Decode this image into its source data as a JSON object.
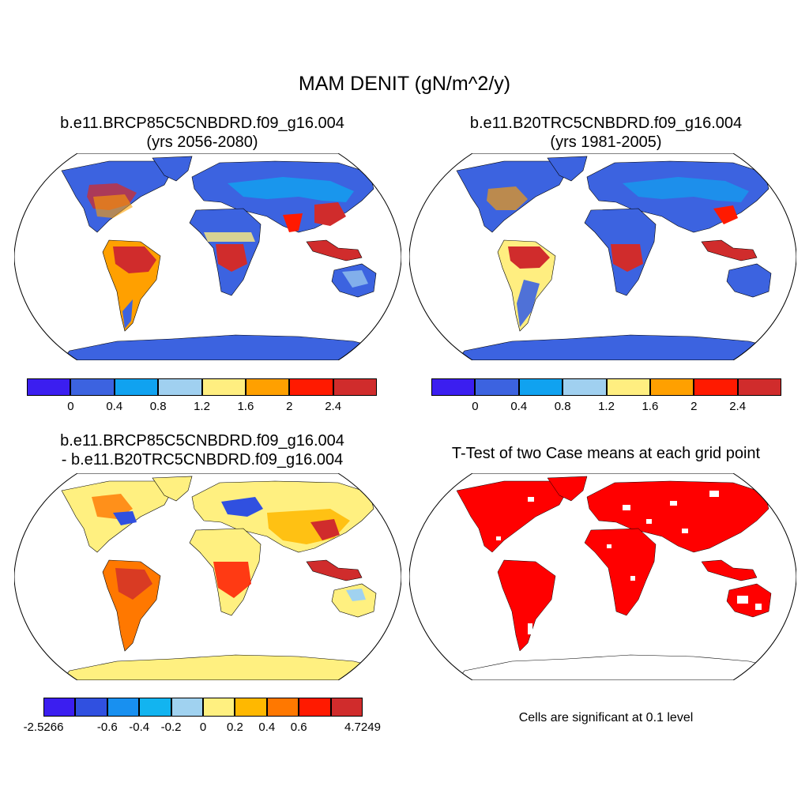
{
  "figure": {
    "title": "MAM DENIT (gN/m^2/y)"
  },
  "panels": [
    {
      "id": "case1",
      "title_line1": "b.e11.BRCP85C5CNBDRD.f09_g16.004",
      "title_line2": "(yrs 2056-2080)",
      "colorbar": {
        "colors": [
          "#3b1ef0",
          "#3c63e0",
          "#10a2f0",
          "#a0d0f0",
          "#ffee80",
          "#ffa000",
          "#ff1a00",
          "#d02c2c"
        ],
        "labels": [
          "0",
          "0.4",
          "0.8",
          "1.2",
          "1.6",
          "2",
          "2.4"
        ]
      }
    },
    {
      "id": "case2",
      "title_line1": "b.e11.B20TRC5CNBDRD.f09_g16.004",
      "title_line2": "(yrs 1981-2005)",
      "colorbar": {
        "colors": [
          "#3b1ef0",
          "#3c63e0",
          "#10a2f0",
          "#a0d0f0",
          "#ffee80",
          "#ffa000",
          "#ff1a00",
          "#d02c2c"
        ],
        "labels": [
          "0",
          "0.4",
          "0.8",
          "1.2",
          "1.6",
          "2",
          "2.4"
        ]
      }
    },
    {
      "id": "difference",
      "title_line1": "b.e11.BRCP85C5CNBDRD.f09_g16.004",
      "title_line2": "- b.e11.B20TRC5CNBDRD.f09_g16.004",
      "colorbar": {
        "colors": [
          "#3b1ef0",
          "#3050e0",
          "#1890f0",
          "#12b4f0",
          "#a0d2f0",
          "#fff080",
          "#ffb800",
          "#ff7800",
          "#ff1a00",
          "#d02c2c"
        ],
        "labels": [
          "-2.5266",
          "",
          "-0.6",
          "-0.4",
          "-0.2",
          "0",
          "0.2",
          "0.4",
          "0.6",
          "",
          "4.7249"
        ]
      }
    },
    {
      "id": "ttest",
      "title_line1": "T-Test of two Case means at each grid point",
      "note": "Cells are significant at 0.1 level"
    }
  ],
  "map_style": {
    "ocean": "#ffffff",
    "outline": "#000000",
    "antarctica_case": "#3c63e0",
    "antarctica_diff": "#fff080",
    "significant": "#ff0000"
  }
}
